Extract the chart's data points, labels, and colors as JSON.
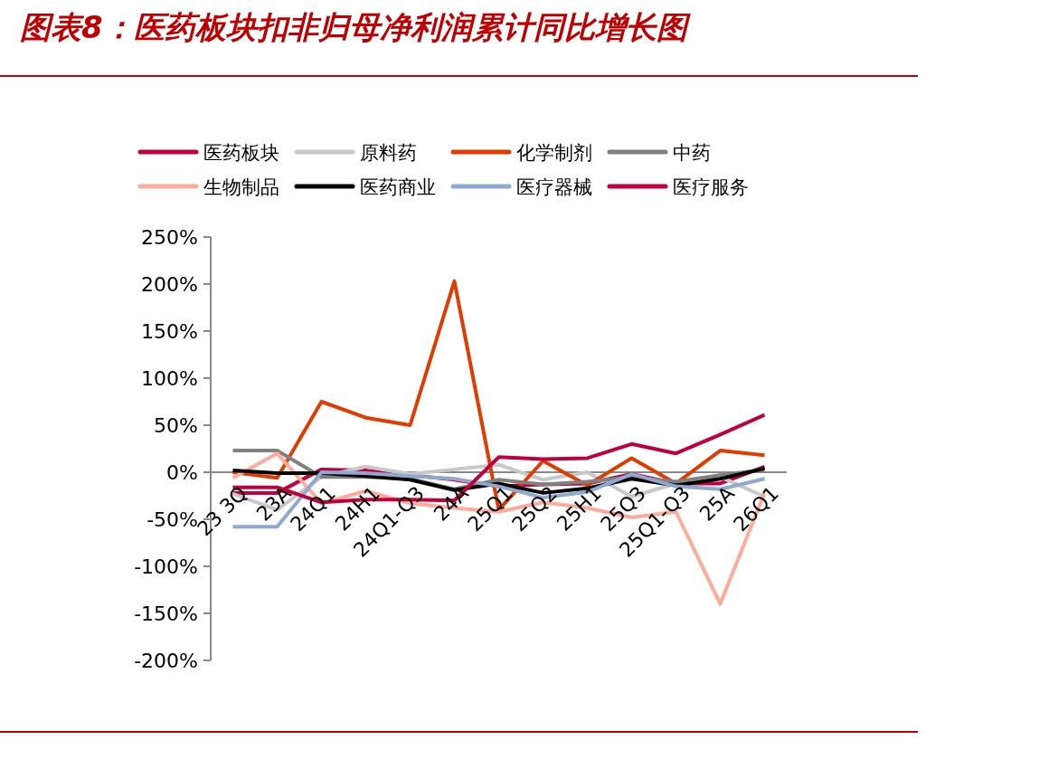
{
  "chart_data": {
    "type": "line",
    "title": "图表8：医药板块扣非归母净利润累计同比增长图",
    "categories": [
      "23 3Q",
      "23A",
      "24Q1",
      "24H1",
      "24Q1-Q3",
      "24A",
      "25Q1",
      "25Q2",
      "25H1",
      "25Q3",
      "25Q1-Q3",
      "25A",
      "26Q1"
    ],
    "series": [
      {
        "name": "医药板块",
        "color": "#c00040",
        "values": [
          -22,
          -22,
          3,
          2,
          -3,
          -8,
          -15,
          -13,
          -12,
          -2,
          -12,
          -12,
          6
        ]
      },
      {
        "name": "原料药",
        "color": "#c8c8c8",
        "values": [
          -23,
          -40,
          -5,
          6,
          -2,
          3,
          8,
          -8,
          0,
          -26,
          -12,
          -5,
          -26
        ]
      },
      {
        "name": "化学制剂",
        "color": "#e03c00",
        "values": [
          0,
          -6,
          75,
          58,
          50,
          203,
          -40,
          12,
          -14,
          15,
          -12,
          23,
          18
        ]
      },
      {
        "name": "中药",
        "color": "#808080",
        "values": [
          23,
          23,
          -5,
          -5,
          -7,
          -18,
          -8,
          -13,
          -10,
          -5,
          -10,
          -3,
          3
        ]
      },
      {
        "name": "生物制品",
        "color": "#ffab9a",
        "values": [
          -6,
          20,
          -33,
          -20,
          -33,
          -38,
          -42,
          -32,
          -38,
          -48,
          -42,
          -140,
          -22
        ]
      },
      {
        "name": "医药商业",
        "color": "#000000",
        "values": [
          2,
          -1,
          -1,
          -4,
          -8,
          -19,
          -12,
          -22,
          -17,
          -7,
          -14,
          -7,
          4
        ]
      },
      {
        "name": "医疗器械",
        "color": "#8fa8d0",
        "values": [
          -58,
          -58,
          0,
          -1,
          -4,
          -7,
          -15,
          -27,
          -21,
          -2,
          -15,
          -18,
          -7
        ]
      },
      {
        "name": "医疗服务",
        "color": "#c0003c",
        "values": [
          -16,
          -16,
          -32,
          -29,
          -29,
          -30,
          16,
          14,
          15,
          30,
          20,
          40,
          61
        ]
      }
    ],
    "ylim": [
      -200,
      250
    ],
    "yticks": [
      {
        "value": -200,
        "label": "-200%"
      },
      {
        "value": -150,
        "label": "-150%"
      },
      {
        "value": -100,
        "label": "-100%"
      },
      {
        "value": -50,
        "label": "-50%"
      },
      {
        "value": 0,
        "label": "0%"
      },
      {
        "value": 50,
        "label": "50%"
      },
      {
        "value": 100,
        "label": "100%"
      },
      {
        "value": 150,
        "label": "150%"
      },
      {
        "value": 200,
        "label": "200%"
      },
      {
        "value": 250,
        "label": "250%"
      }
    ],
    "legend": "top",
    "grid": false,
    "marker": "none",
    "line_style": "solid"
  }
}
